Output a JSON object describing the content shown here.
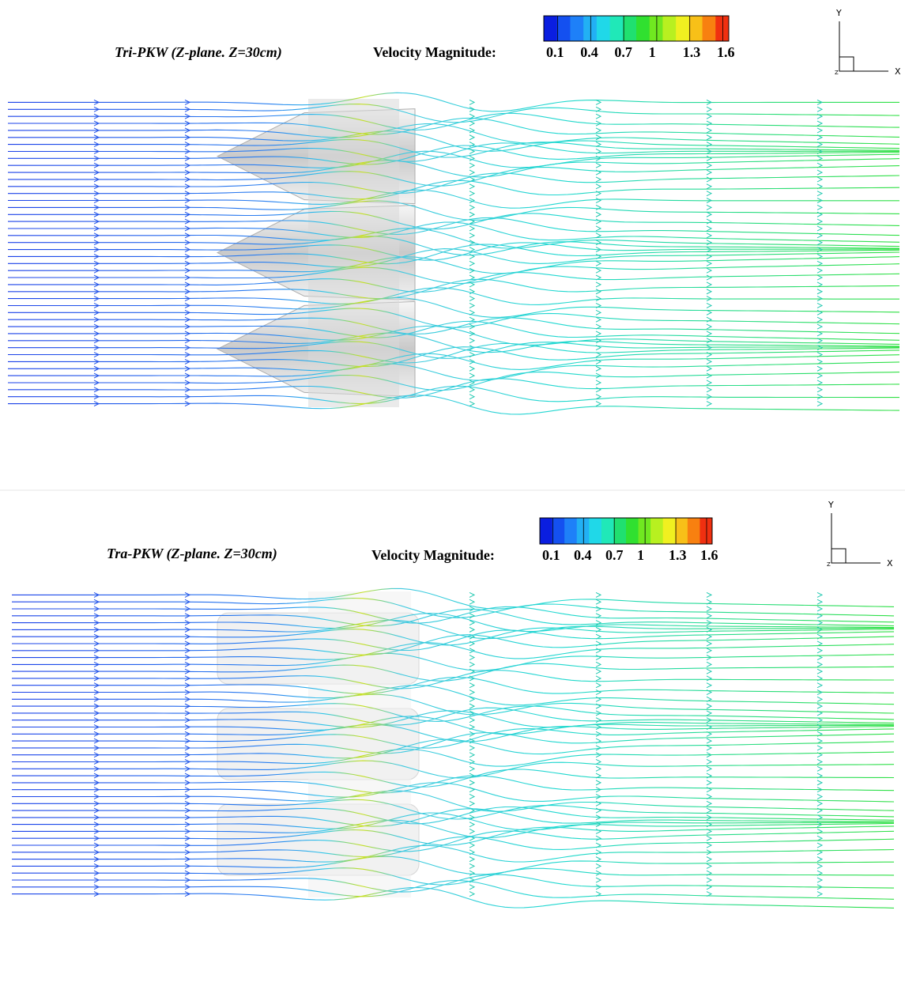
{
  "panels": [
    {
      "title": "Tri-PKW (Z-plane. Z=30cm)",
      "colorbar": {
        "label": "Velocity Magnitude:",
        "ticks": [
          0.1,
          0.4,
          0.7,
          1,
          1.3,
          1.6
        ]
      },
      "axes": {
        "x": "X",
        "y": "Y",
        "z": "Z"
      }
    },
    {
      "title": "Tra-PKW (Z-plane. Z=30cm)",
      "colorbar": {
        "label": "Velocity Magnitude:",
        "ticks": [
          0.1,
          0.4,
          0.7,
          1,
          1.3,
          1.6
        ]
      },
      "axes": {
        "x": "X",
        "y": "Y",
        "z": "Z"
      }
    }
  ]
}
